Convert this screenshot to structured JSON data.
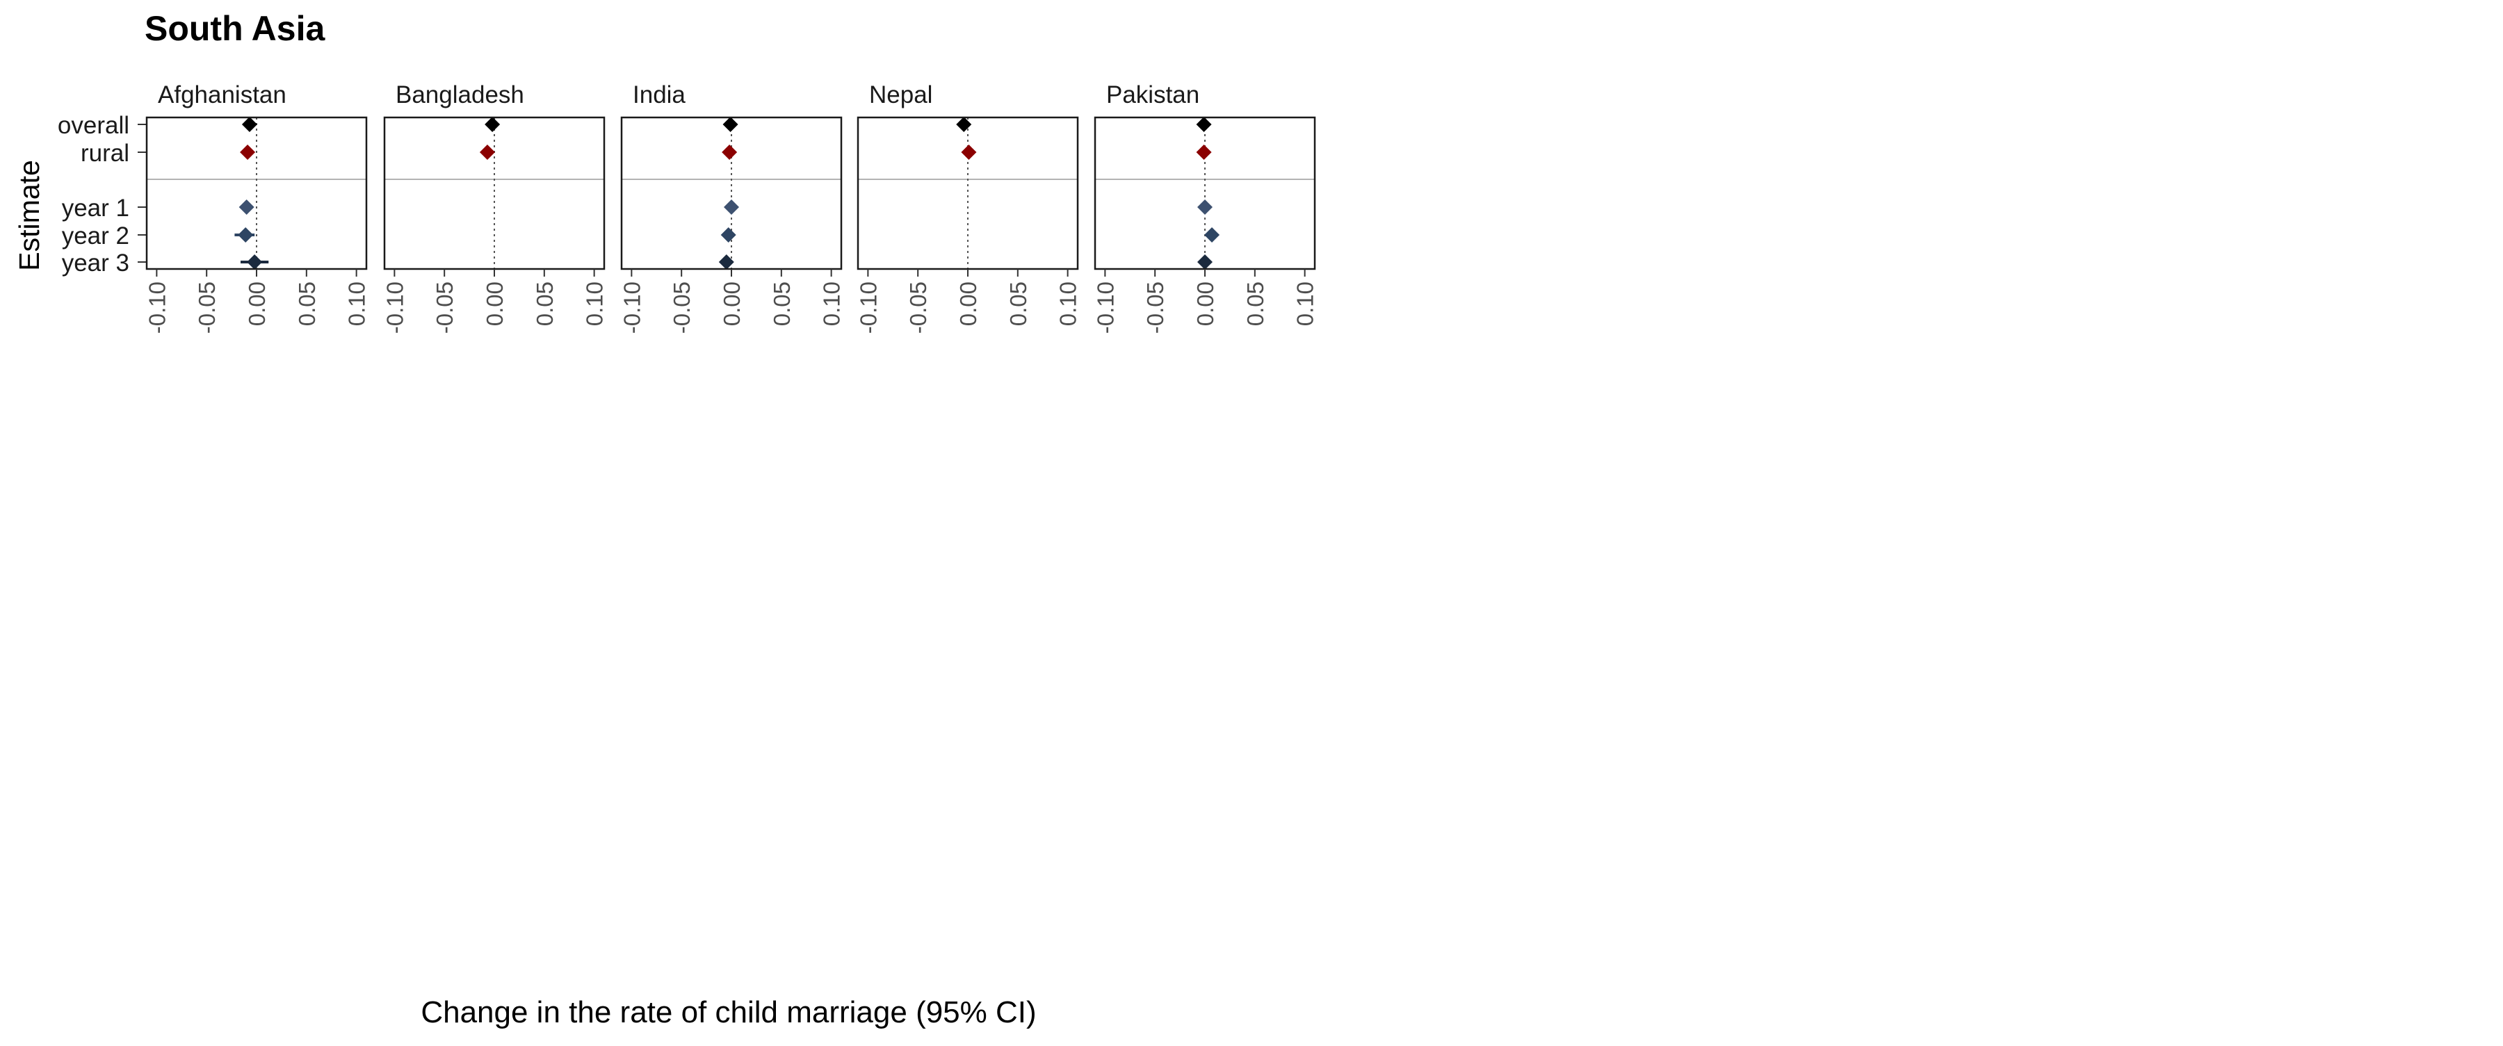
{
  "chart_data": {
    "type": "scatter",
    "title": "South Asia",
    "xlabel": "Change in the rate of child marriage (95% CI)",
    "ylabel": "Estimate",
    "xlim": [
      -0.11,
      0.11
    ],
    "x_ticks": [
      -0.1,
      -0.05,
      0.0,
      0.05,
      0.1
    ],
    "x_tick_labels": [
      "-0.10",
      "-0.05",
      "0.00",
      "0.05",
      "0.10"
    ],
    "y_categories": [
      "overall",
      "rural",
      "year 1",
      "year 2",
      "year 3"
    ],
    "reference_line_x": 0,
    "grid": false,
    "colors": {
      "overall": "#000000",
      "rural": "#8b0000",
      "year 1": "#3d5170",
      "year 2": "#2e4563",
      "year 3": "#1b2a3e",
      "separator": "#b3b3b3",
      "reference": "#555555"
    },
    "panels": [
      {
        "name": "Afghanistan",
        "points": [
          {
            "estimate": "overall",
            "x": -0.007,
            "lo": -0.009,
            "hi": -0.005
          },
          {
            "estimate": "rural",
            "x": -0.009,
            "lo": -0.012,
            "hi": -0.006
          },
          {
            "estimate": "year 1",
            "x": -0.01,
            "lo": -0.013,
            "hi": -0.007
          },
          {
            "estimate": "year 2",
            "x": -0.011,
            "lo": -0.022,
            "hi": -0.002
          },
          {
            "estimate": "year 3",
            "x": -0.002,
            "lo": -0.016,
            "hi": 0.012
          }
        ]
      },
      {
        "name": "Bangladesh",
        "points": [
          {
            "estimate": "overall",
            "x": -0.002,
            "lo": -0.004,
            "hi": 0.0
          },
          {
            "estimate": "rural",
            "x": -0.007,
            "lo": -0.01,
            "hi": -0.004
          }
        ]
      },
      {
        "name": "India",
        "points": [
          {
            "estimate": "overall",
            "x": -0.001,
            "lo": -0.002,
            "hi": 0.0
          },
          {
            "estimate": "rural",
            "x": -0.002,
            "lo": -0.003,
            "hi": -0.001
          },
          {
            "estimate": "year 1",
            "x": 0.0,
            "lo": -0.001,
            "hi": 0.001
          },
          {
            "estimate": "year 2",
            "x": -0.003,
            "lo": -0.004,
            "hi": -0.002
          },
          {
            "estimate": "year 3",
            "x": -0.005,
            "lo": -0.008,
            "hi": -0.002
          }
        ]
      },
      {
        "name": "Nepal",
        "points": [
          {
            "estimate": "overall",
            "x": -0.004,
            "lo": -0.006,
            "hi": -0.002
          },
          {
            "estimate": "rural",
            "x": 0.001,
            "lo": -0.004,
            "hi": 0.006
          }
        ]
      },
      {
        "name": "Pakistan",
        "points": [
          {
            "estimate": "overall",
            "x": -0.001,
            "lo": -0.003,
            "hi": 0.001
          },
          {
            "estimate": "rural",
            "x": -0.001,
            "lo": -0.003,
            "hi": 0.001
          },
          {
            "estimate": "year 1",
            "x": 0.0,
            "lo": -0.002,
            "hi": 0.002
          },
          {
            "estimate": "year 2",
            "x": 0.007,
            "lo": 0.004,
            "hi": 0.01
          },
          {
            "estimate": "year 3",
            "x": 0.0,
            "lo": -0.002,
            "hi": 0.002
          }
        ]
      }
    ]
  }
}
